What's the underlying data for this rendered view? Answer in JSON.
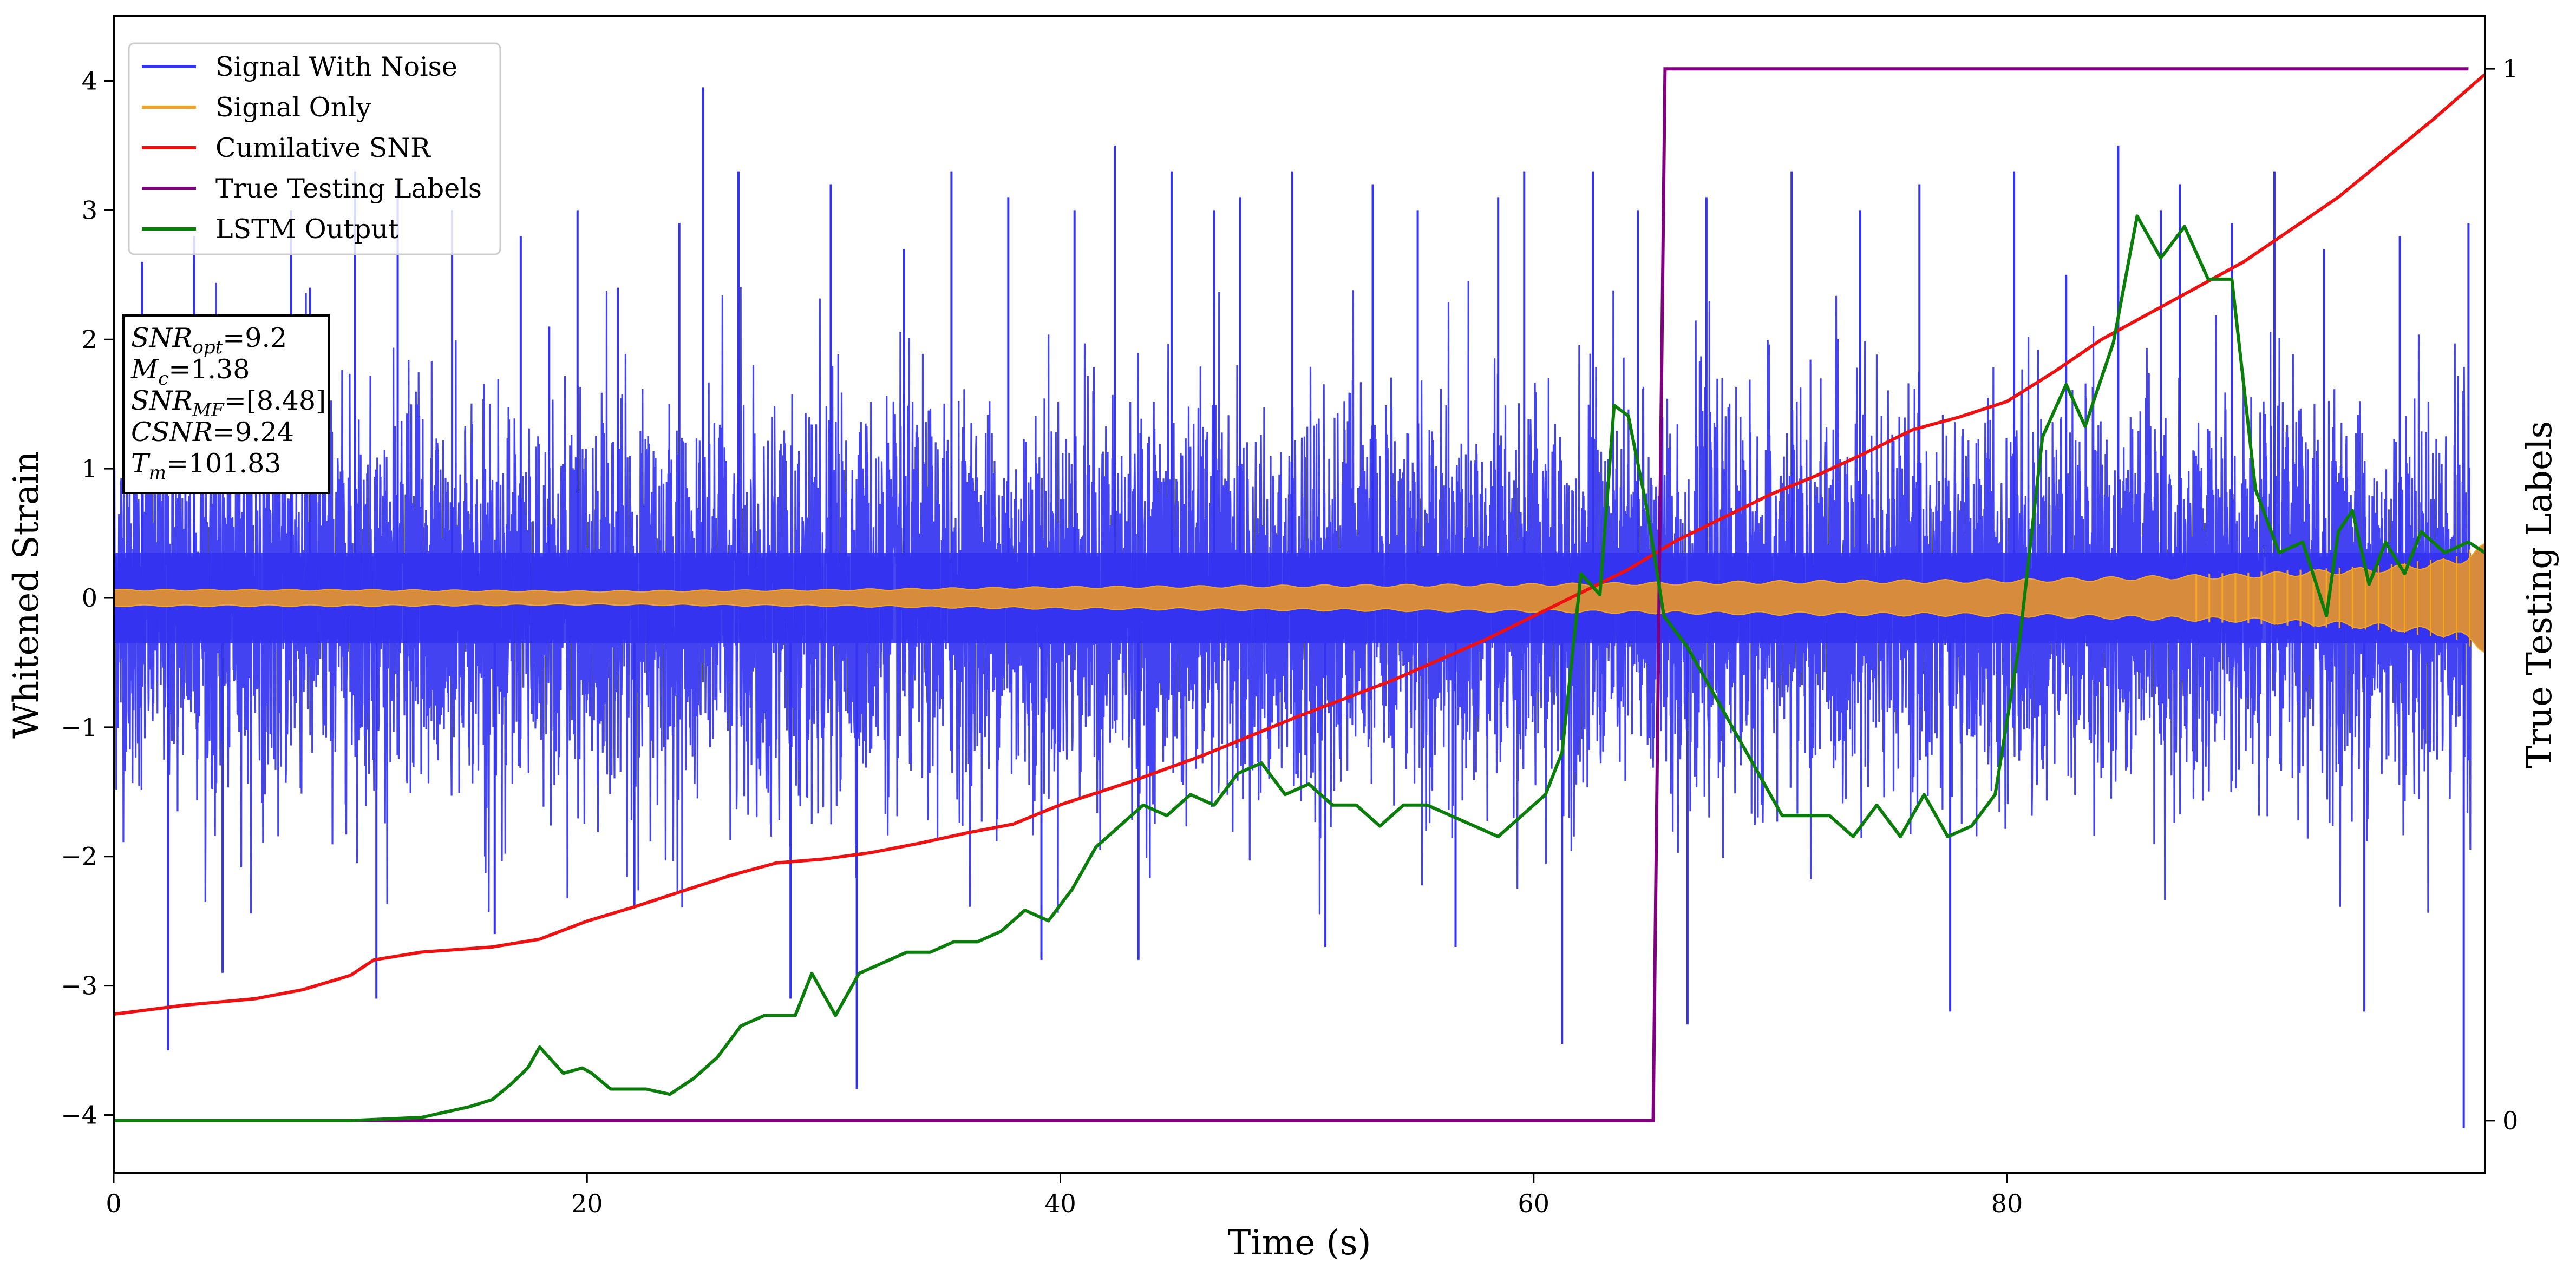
{
  "chart_data": {
    "type": "line",
    "xlabel": "Time (s)",
    "ylabel": "Whitened Strain",
    "y2label": "True Testing Labels",
    "xlim": [
      0,
      100.2
    ],
    "ylim": [
      -4.45,
      4.5
    ],
    "y2lim": [
      -0.05,
      1.05
    ],
    "xticks": [
      0,
      20,
      40,
      60,
      80
    ],
    "xtick_labels": [
      "0",
      "20",
      "40",
      "60",
      "80"
    ],
    "yticks": [
      -4,
      -3,
      -2,
      -1,
      0,
      1,
      2,
      3,
      4
    ],
    "ytick_labels": [
      "−4",
      "−3",
      "−2",
      "−1",
      "0",
      "1",
      "2",
      "3",
      "4"
    ],
    "y2ticks": [
      0,
      1
    ],
    "y2tick_labels": [
      "0",
      "1"
    ],
    "grid": false,
    "legend_position": "top-left",
    "legend": [
      {
        "label": "Signal With Noise",
        "color": "#3333f0"
      },
      {
        "label": "Signal Only",
        "color": "#f5a623"
      },
      {
        "label": "Cumilative SNR",
        "color": "#ee1111"
      },
      {
        "label": "True Testing Labels",
        "color": "#800080"
      },
      {
        "label": "LSTM Output",
        "color": "#0a7d0a"
      }
    ],
    "info_box": [
      {
        "sym": "SNR",
        "sub": "opt",
        "val": "=9.2"
      },
      {
        "sym": "M",
        "sub": "c",
        "val": "=1.38"
      },
      {
        "sym": "SNR",
        "sub": "MF",
        "val": "=[8.48]"
      },
      {
        "sym": "CSNR",
        "sub": "",
        "val": "=9.24"
      },
      {
        "sym": "T",
        "sub": "m",
        "val": "=101.83"
      }
    ],
    "series": [
      {
        "name": "Signal With Noise",
        "axis": "left",
        "style": "dense-noise",
        "color": "#3333f0",
        "description_values": {
          "core_band": [
            -0.35,
            0.35
          ],
          "typical_extent": [
            -2.3,
            2.3
          ],
          "max_peak": 3.95,
          "min_trough": -4.1
        },
        "spikes": [
          [
            1.2,
            2.6
          ],
          [
            2.3,
            -3.5
          ],
          [
            3.4,
            2.8
          ],
          [
            4.6,
            -2.9
          ],
          [
            7.5,
            3.0
          ],
          [
            8.3,
            2.4
          ],
          [
            10.2,
            3.3
          ],
          [
            11.1,
            -3.1
          ],
          [
            12.0,
            3.2
          ],
          [
            14.3,
            3.0
          ],
          [
            16.1,
            -2.6
          ],
          [
            17.2,
            2.8
          ],
          [
            18.4,
            2.1
          ],
          [
            19.6,
            3.0
          ],
          [
            21.3,
            2.4
          ],
          [
            22.0,
            -2.4
          ],
          [
            23.9,
            2.9
          ],
          [
            24.9,
            3.95
          ],
          [
            26.4,
            3.3
          ],
          [
            28.6,
            -3.1
          ],
          [
            30.3,
            3.2
          ],
          [
            31.4,
            -3.8
          ],
          [
            33.4,
            2.7
          ],
          [
            35.4,
            3.3
          ],
          [
            37.8,
            3.1
          ],
          [
            39.2,
            -2.8
          ],
          [
            40.6,
            3.0
          ],
          [
            42.3,
            3.5
          ],
          [
            43.3,
            -2.8
          ],
          [
            44.7,
            3.3
          ],
          [
            46.5,
            3.0
          ],
          [
            47.6,
            3.1
          ],
          [
            49.8,
            3.3
          ],
          [
            51.2,
            -2.7
          ],
          [
            53.2,
            3.2
          ],
          [
            55.1,
            3.0
          ],
          [
            56.7,
            -2.7
          ],
          [
            58.5,
            3.1
          ],
          [
            59.6,
            3.3
          ],
          [
            61.2,
            -3.45
          ],
          [
            62.5,
            3.3
          ],
          [
            64.4,
            3.0
          ],
          [
            66.5,
            -3.3
          ],
          [
            67.3,
            3.1
          ],
          [
            70.9,
            3.3
          ],
          [
            73.8,
            3.0
          ],
          [
            76.3,
            3.2
          ],
          [
            77.6,
            -3.2
          ],
          [
            80.3,
            3.3
          ],
          [
            82.5,
            2.5
          ],
          [
            84.7,
            3.5
          ],
          [
            86.5,
            3.0
          ],
          [
            87.3,
            3.2
          ],
          [
            89.5,
            2.9
          ],
          [
            91.3,
            3.3
          ],
          [
            93.4,
            2.7
          ],
          [
            95.1,
            -3.2
          ],
          [
            96.6,
            2.8
          ],
          [
            99.3,
            -4.1
          ],
          [
            99.5,
            2.9
          ]
        ]
      },
      {
        "name": "Signal Only",
        "axis": "left",
        "style": "envelope-band",
        "color": "#f5a623",
        "fill_color": "#d68c3c",
        "amplitude": [
          [
            0,
            0.06
          ],
          [
            10,
            0.06
          ],
          [
            20,
            0.05
          ],
          [
            30,
            0.06
          ],
          [
            40,
            0.08
          ],
          [
            50,
            0.09
          ],
          [
            60,
            0.1
          ],
          [
            70,
            0.12
          ],
          [
            80,
            0.13
          ],
          [
            90,
            0.17
          ],
          [
            96,
            0.22
          ],
          [
            99,
            0.28
          ],
          [
            100.2,
            0.38
          ]
        ]
      },
      {
        "name": "Cumilative SNR",
        "axis": "left",
        "color": "#ee1111",
        "x": [
          0,
          3,
          6,
          8,
          10,
          11,
          13,
          16,
          18,
          20,
          22,
          24,
          26,
          28,
          30,
          32,
          34,
          36,
          38,
          40,
          43,
          46,
          50,
          54,
          58,
          61,
          64,
          66,
          68,
          70,
          72,
          74,
          76,
          78,
          80,
          82,
          84,
          86,
          88,
          90,
          92,
          94,
          96,
          98,
          100,
          100.2
        ],
        "y": [
          -3.22,
          -3.15,
          -3.1,
          -3.03,
          -2.92,
          -2.8,
          -2.74,
          -2.7,
          -2.64,
          -2.5,
          -2.39,
          -2.27,
          -2.15,
          -2.05,
          -2.02,
          -1.97,
          -1.9,
          -1.82,
          -1.75,
          -1.6,
          -1.42,
          -1.22,
          -0.92,
          -0.64,
          -0.32,
          -0.05,
          0.22,
          0.44,
          0.62,
          0.8,
          0.95,
          1.12,
          1.3,
          1.4,
          1.52,
          1.75,
          2.0,
          2.2,
          2.4,
          2.6,
          2.85,
          3.1,
          3.4,
          3.7,
          4.02,
          4.05
        ]
      },
      {
        "name": "True Testing Labels",
        "axis": "right",
        "color": "#800080",
        "x": [
          0,
          65.05,
          65.55,
          99.5
        ],
        "y": [
          0,
          0,
          1,
          1
        ]
      },
      {
        "name": "LSTM Output",
        "axis": "right",
        "color": "#0a7d0a",
        "x": [
          0,
          10,
          13,
          15,
          16,
          16.8,
          17.5,
          18.0,
          18.4,
          19.0,
          19.8,
          20.2,
          21.0,
          22.5,
          23.5,
          24.5,
          25.5,
          26.5,
          27.5,
          28.8,
          29.5,
          30.5,
          31.5,
          32.5,
          33.5,
          34.5,
          35.5,
          36.5,
          37.5,
          38.5,
          39.5,
          40.5,
          41.5,
          42.5,
          43.5,
          44.5,
          45.5,
          46.5,
          47.5,
          48.5,
          49.5,
          50.5,
          51.5,
          52.5,
          53.5,
          54.5,
          55.5,
          56.5,
          57.5,
          58.5,
          59.5,
          60.5,
          61.2,
          62.0,
          62.8,
          63.4,
          64.0,
          64.8,
          65.5,
          66.5,
          67.5,
          68.5,
          69.5,
          70.5,
          71.5,
          72.5,
          73.5,
          74.5,
          75.5,
          76.5,
          77.5,
          78.5,
          79.5,
          80.5,
          81.5,
          82.5,
          83.3,
          84.5,
          85.5,
          86.5,
          87.5,
          88.5,
          89.5,
          90.5,
          91.5,
          92.5,
          93.5,
          94.0,
          94.6,
          95.3,
          96.0,
          96.8,
          97.5,
          98.5,
          99.5,
          100.2
        ],
        "y": [
          0,
          0,
          0.003,
          0.013,
          0.02,
          0.035,
          0.05,
          0.07,
          0.06,
          0.045,
          0.05,
          0.045,
          0.03,
          0.03,
          0.025,
          0.04,
          0.06,
          0.09,
          0.1,
          0.1,
          0.14,
          0.1,
          0.14,
          0.15,
          0.16,
          0.16,
          0.17,
          0.17,
          0.18,
          0.2,
          0.19,
          0.22,
          0.26,
          0.28,
          0.3,
          0.29,
          0.31,
          0.3,
          0.33,
          0.34,
          0.31,
          0.32,
          0.3,
          0.3,
          0.28,
          0.3,
          0.3,
          0.29,
          0.28,
          0.27,
          0.29,
          0.31,
          0.35,
          0.52,
          0.5,
          0.68,
          0.67,
          0.58,
          0.48,
          0.45,
          0.41,
          0.37,
          0.33,
          0.29,
          0.29,
          0.29,
          0.27,
          0.3,
          0.27,
          0.31,
          0.27,
          0.28,
          0.31,
          0.45,
          0.65,
          0.7,
          0.66,
          0.74,
          0.86,
          0.82,
          0.85,
          0.8,
          0.8,
          0.6,
          0.54,
          0.55,
          0.48,
          0.56,
          0.58,
          0.51,
          0.55,
          0.52,
          0.56,
          0.54,
          0.55,
          0.54
        ]
      }
    ]
  }
}
